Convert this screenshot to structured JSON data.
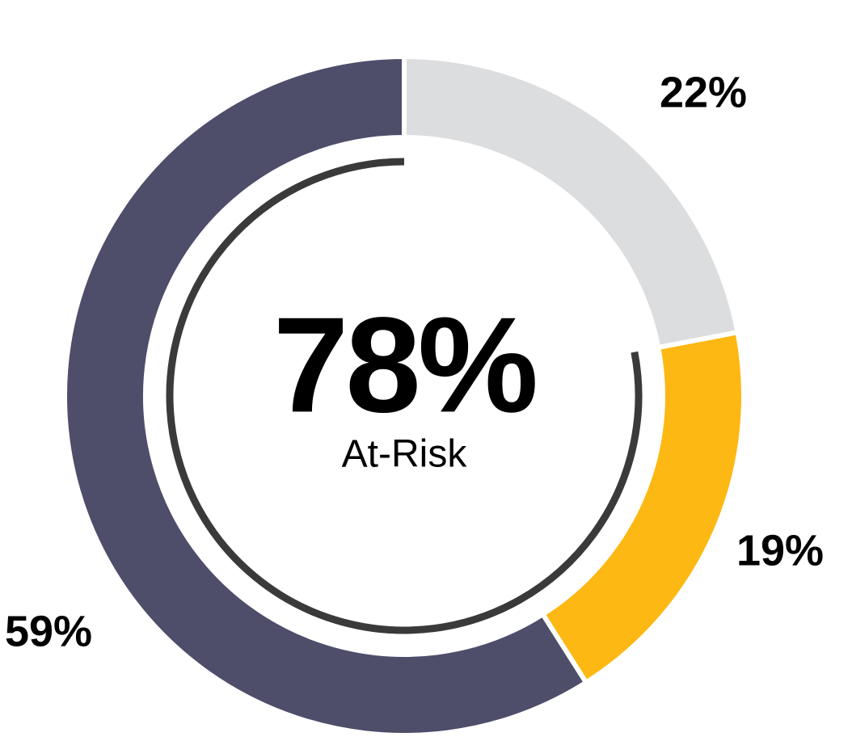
{
  "chart_data": {
    "type": "donut",
    "values": [
      22,
      19,
      59
    ],
    "value_labels": [
      "22%",
      "19%",
      "59%"
    ],
    "colors": [
      "#dcdddf",
      "#fdb813",
      "#4e4d6a"
    ],
    "center": {
      "value": 78,
      "label": "78%",
      "caption": "At-Risk",
      "color": "#3a3a3a"
    }
  }
}
